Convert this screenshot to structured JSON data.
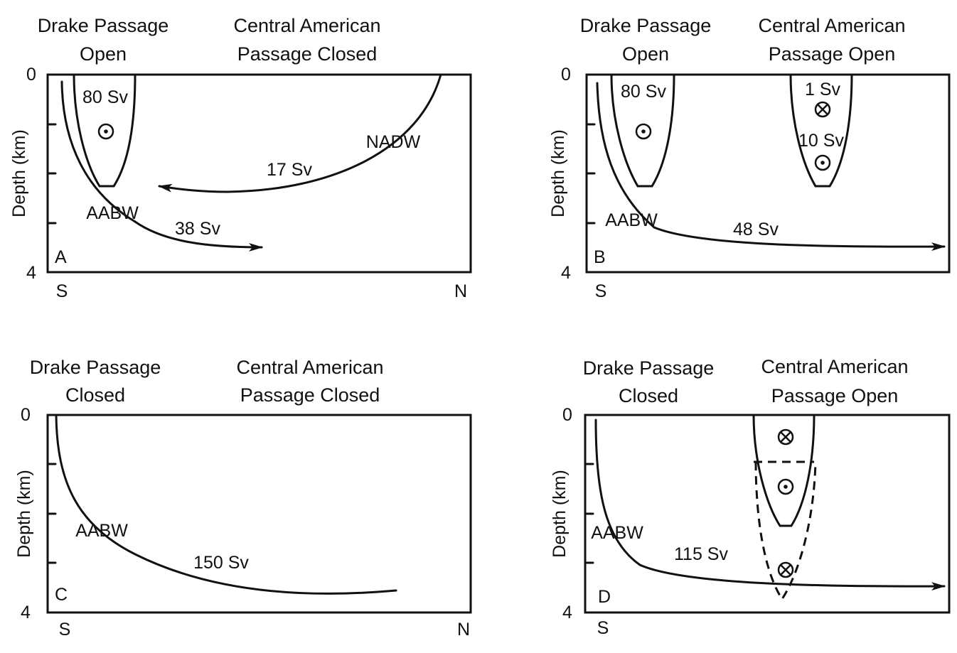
{
  "panels": {
    "a": {
      "letter": "A",
      "drake_line1": "Drake Passage",
      "drake_line2": "Open",
      "ca_line1": "Central American",
      "ca_line2": "Passage Closed",
      "y_label": "Depth (km)",
      "y_top": "0",
      "y_bottom": "4",
      "x_left": "S",
      "x_right": "N",
      "drake_flow": "80 Sv",
      "nadw": "NADW",
      "nadw_flow": "17 Sv",
      "aabw": "AABW",
      "aabw_flow": "38 Sv"
    },
    "b": {
      "letter": "B",
      "drake_line1": "Drake Passage",
      "drake_line2": "Open",
      "ca_line1": "Central American",
      "ca_line2": "Passage Open",
      "y_label": "Depth (km)",
      "y_top": "0",
      "y_bottom": "4",
      "x_left": "S",
      "drake_flow": "80 Sv",
      "ca_flow_upper": "1 Sv",
      "ca_flow_lower": "10 Sv",
      "aabw": "AABW",
      "aabw_flow": "48 Sv"
    },
    "c": {
      "letter": "C",
      "drake_line1": "Drake Passage",
      "drake_line2": "Closed",
      "ca_line1": "Central American",
      "ca_line2": "Passage Closed",
      "y_label": "Depth (km)",
      "y_top": "0",
      "y_bottom": "4",
      "x_left": "S",
      "x_right": "N",
      "aabw": "AABW",
      "aabw_flow": "150 Sv"
    },
    "d": {
      "letter": "D",
      "drake_line1": "Drake Passage",
      "drake_line2": "Closed",
      "ca_line1": "Central American",
      "ca_line2": "Passage Open",
      "y_label": "Depth (km)",
      "y_top": "0",
      "y_bottom": "4",
      "x_left": "S",
      "aabw": "AABW",
      "aabw_flow": "115 Sv"
    }
  }
}
